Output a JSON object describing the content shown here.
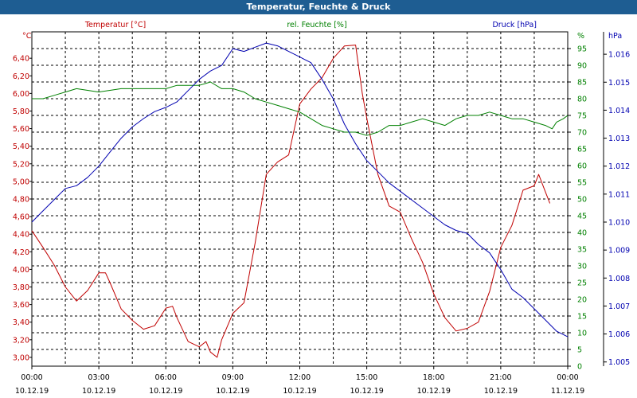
{
  "window": {
    "title": "Temperatur, Feuchte & Druck"
  },
  "chart_data": {
    "type": "line",
    "title": "Temperatur, Feuchte & Druck",
    "x_ticks": [
      {
        "time": "00:00",
        "date": "10.12.19"
      },
      {
        "time": "03:00",
        "date": "10.12.19"
      },
      {
        "time": "06:00",
        "date": "10.12.19"
      },
      {
        "time": "09:00",
        "date": "10.12.19"
      },
      {
        "time": "12:00",
        "date": "10.12.19"
      },
      {
        "time": "15:00",
        "date": "10.12.19"
      },
      {
        "time": "18:00",
        "date": "10.12.19"
      },
      {
        "time": "21:00",
        "date": "10.12.19"
      },
      {
        "time": "00:00",
        "date": "11.12.19"
      }
    ],
    "x_range_hours": [
      0,
      24
    ],
    "grid": true,
    "axes": {
      "temperature": {
        "unit": "°C",
        "range": [
          2.9,
          6.7
        ],
        "ticks": [
          "3,00",
          "3,20",
          "3,40",
          "3,60",
          "3,80",
          "4,00",
          "4,20",
          "4,40",
          "4,60",
          "4,80",
          "5,00",
          "5,20",
          "5,40",
          "5,60",
          "5,80",
          "6,00",
          "6,20",
          "6,40"
        ]
      },
      "humidity": {
        "unit": "%",
        "range": [
          0,
          100
        ],
        "ticks": [
          "0",
          "5",
          "10",
          "15",
          "20",
          "25",
          "30",
          "35",
          "40",
          "45",
          "50",
          "55",
          "60",
          "65",
          "70",
          "75",
          "80",
          "85",
          "90",
          "95"
        ]
      },
      "pressure": {
        "unit": "hPa",
        "range": [
          1004.85,
          1016.8
        ],
        "ticks": [
          "1.005",
          "1.006",
          "1.007",
          "1.008",
          "1.009",
          "1.010",
          "1.011",
          "1.012",
          "1.013",
          "1.014",
          "1.015",
          "1.016"
        ]
      }
    },
    "series": [
      {
        "name": "Temperatur [°C]",
        "axis": "temperature",
        "color": "#c00000",
        "points": [
          [
            0,
            4.44
          ],
          [
            0.5,
            4.25
          ],
          [
            1,
            4.05
          ],
          [
            1.5,
            3.8
          ],
          [
            2,
            3.64
          ],
          [
            2.5,
            3.76
          ],
          [
            3,
            3.96
          ],
          [
            3.3,
            3.96
          ],
          [
            3.5,
            3.85
          ],
          [
            4,
            3.55
          ],
          [
            4.5,
            3.42
          ],
          [
            5,
            3.32
          ],
          [
            5.5,
            3.36
          ],
          [
            6,
            3.56
          ],
          [
            6.3,
            3.58
          ],
          [
            6.5,
            3.45
          ],
          [
            7,
            3.18
          ],
          [
            7.5,
            3.12
          ],
          [
            7.8,
            3.18
          ],
          [
            8,
            3.06
          ],
          [
            8.3,
            3.0
          ],
          [
            8.5,
            3.2
          ],
          [
            9,
            3.5
          ],
          [
            9.5,
            3.62
          ],
          [
            10,
            4.3
          ],
          [
            10.5,
            5.08
          ],
          [
            11,
            5.22
          ],
          [
            11.5,
            5.3
          ],
          [
            12,
            5.88
          ],
          [
            12.5,
            6.05
          ],
          [
            13,
            6.18
          ],
          [
            13.5,
            6.4
          ],
          [
            14,
            6.54
          ],
          [
            14.5,
            6.55
          ],
          [
            14.8,
            6.0
          ],
          [
            15,
            5.72
          ],
          [
            15.5,
            5.08
          ],
          [
            16,
            4.72
          ],
          [
            16.5,
            4.65
          ],
          [
            17,
            4.35
          ],
          [
            17.5,
            4.08
          ],
          [
            18,
            3.72
          ],
          [
            18.5,
            3.45
          ],
          [
            19,
            3.3
          ],
          [
            19.5,
            3.33
          ],
          [
            20,
            3.4
          ],
          [
            20.5,
            3.75
          ],
          [
            21,
            4.25
          ],
          [
            21.5,
            4.5
          ],
          [
            22,
            4.9
          ],
          [
            22.5,
            4.95
          ],
          [
            22.7,
            5.08
          ],
          [
            23,
            4.88
          ],
          [
            23.2,
            4.75
          ]
        ]
      },
      {
        "name": "rel. Feuchte [%]",
        "axis": "humidity",
        "color": "#008000",
        "points": [
          [
            0,
            80
          ],
          [
            0.5,
            80
          ],
          [
            1,
            81
          ],
          [
            1.5,
            82
          ],
          [
            2,
            83
          ],
          [
            3,
            82
          ],
          [
            3.5,
            82.5
          ],
          [
            4,
            83
          ],
          [
            5,
            83
          ],
          [
            6,
            83
          ],
          [
            6.5,
            84
          ],
          [
            7,
            84
          ],
          [
            7.5,
            84
          ],
          [
            8,
            85
          ],
          [
            8.5,
            83
          ],
          [
            9,
            83
          ],
          [
            9.5,
            82
          ],
          [
            10,
            80
          ],
          [
            10.5,
            79
          ],
          [
            11,
            78
          ],
          [
            11.5,
            77
          ],
          [
            12,
            76
          ],
          [
            12.5,
            74
          ],
          [
            13,
            72
          ],
          [
            13.5,
            71
          ],
          [
            14,
            70
          ],
          [
            14.5,
            70
          ],
          [
            15,
            69
          ],
          [
            15.5,
            70
          ],
          [
            16,
            72
          ],
          [
            16.5,
            72
          ],
          [
            17,
            73
          ],
          [
            17.5,
            74
          ],
          [
            18,
            73
          ],
          [
            18.5,
            72
          ],
          [
            19,
            74
          ],
          [
            19.5,
            75
          ],
          [
            20,
            75
          ],
          [
            20.5,
            76
          ],
          [
            21,
            75
          ],
          [
            21.5,
            74
          ],
          [
            22,
            74
          ],
          [
            22.5,
            73
          ],
          [
            23,
            72
          ],
          [
            23.3,
            71
          ],
          [
            23.5,
            73
          ],
          [
            23.8,
            74
          ],
          [
            24,
            75
          ]
        ]
      },
      {
        "name": "Druck [hPa]",
        "axis": "pressure",
        "color": "#0000b0",
        "points": [
          [
            0,
            1010.0
          ],
          [
            0.5,
            1010.4
          ],
          [
            1,
            1010.8
          ],
          [
            1.5,
            1011.2
          ],
          [
            2,
            1011.3
          ],
          [
            2.5,
            1011.6
          ],
          [
            3,
            1012.0
          ],
          [
            3.5,
            1012.5
          ],
          [
            4,
            1013.0
          ],
          [
            4.5,
            1013.4
          ],
          [
            5,
            1013.7
          ],
          [
            5.5,
            1013.95
          ],
          [
            6,
            1014.1
          ],
          [
            6.5,
            1014.3
          ],
          [
            7,
            1014.7
          ],
          [
            7.5,
            1015.1
          ],
          [
            8,
            1015.4
          ],
          [
            8.5,
            1015.6
          ],
          [
            9,
            1016.2
          ],
          [
            9.5,
            1016.1
          ],
          [
            10,
            1016.25
          ],
          [
            10.5,
            1016.4
          ],
          [
            11,
            1016.3
          ],
          [
            11.5,
            1016.1
          ],
          [
            12,
            1015.9
          ],
          [
            12.5,
            1015.7
          ],
          [
            13,
            1015.1
          ],
          [
            13.5,
            1014.4
          ],
          [
            14,
            1013.5
          ],
          [
            14.5,
            1012.8
          ],
          [
            15,
            1012.2
          ],
          [
            15.5,
            1011.8
          ],
          [
            16,
            1011.4
          ],
          [
            16.5,
            1011.1
          ],
          [
            17,
            1010.8
          ],
          [
            17.5,
            1010.5
          ],
          [
            18,
            1010.2
          ],
          [
            18.5,
            1009.9
          ],
          [
            19,
            1009.7
          ],
          [
            19.5,
            1009.6
          ],
          [
            20,
            1009.2
          ],
          [
            20.5,
            1008.9
          ],
          [
            21,
            1008.3
          ],
          [
            21.5,
            1007.6
          ],
          [
            22,
            1007.3
          ],
          [
            22.5,
            1006.9
          ],
          [
            23,
            1006.5
          ],
          [
            23.5,
            1006.1
          ],
          [
            24,
            1005.9
          ]
        ]
      }
    ]
  }
}
